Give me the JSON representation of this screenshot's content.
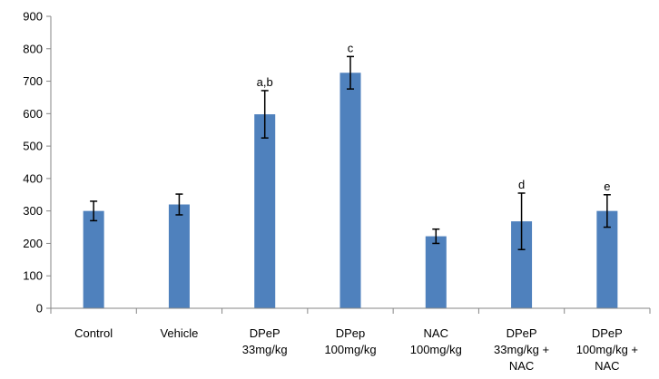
{
  "chart_data": {
    "type": "bar",
    "title": "",
    "xlabel": "",
    "ylabel": "",
    "ylim": [
      0,
      900
    ],
    "yticks": [
      0,
      100,
      200,
      300,
      400,
      500,
      600,
      700,
      800,
      900
    ],
    "grid": false,
    "legend": "none",
    "bar_color": "#4F81BD",
    "categories": [
      [
        "Control"
      ],
      [
        "Vehicle"
      ],
      [
        "DPeP",
        "33mg/kg"
      ],
      [
        "DPep",
        "100mg/kg"
      ],
      [
        "NAC",
        "100mg/kg"
      ],
      [
        "DPeP",
        "33mg/kg +",
        "NAC"
      ],
      [
        "DPeP",
        "100mg/kg +",
        "NAC"
      ]
    ],
    "values": [
      300,
      320,
      598,
      726,
      222,
      268,
      300
    ],
    "error": [
      30,
      32,
      73,
      50,
      22,
      87,
      50
    ],
    "annotations": [
      "",
      "",
      "a,b",
      "c",
      "",
      "d",
      "e"
    ]
  }
}
